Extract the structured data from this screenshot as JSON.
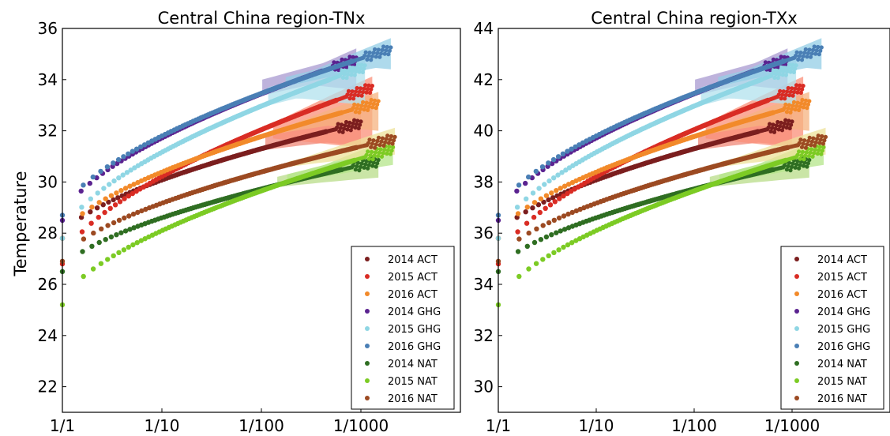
{
  "chart_data": [
    {
      "type": "scatter",
      "title": "Central China region-TNx",
      "xlabel": "",
      "ylabel": "Temperature",
      "xscale": "log",
      "xticks": [
        "1/1",
        "1/10",
        "1/100",
        "1/1000"
      ],
      "xlim_return_period": [
        1,
        10000
      ],
      "yticks": [
        "22",
        "24",
        "26",
        "28",
        "30",
        "32",
        "34",
        "36"
      ],
      "ylim": [
        21,
        36
      ],
      "legend_position": "lower-right",
      "series": [
        {
          "name": "2014 ACT",
          "color": "#7b1e1e",
          "y0": 27.8,
          "y1": 32.3,
          "rp_max": 1000,
          "band": {
            "color": "#f08878",
            "lo": 31.4,
            "hi": 32.8
          }
        },
        {
          "name": "2015 ACT",
          "color": "#d92c24",
          "y0": 26.8,
          "y1": 33.7,
          "rp_max": 1300,
          "band": {
            "color": "#fb8f78",
            "lo": 31.3,
            "hi": 33.2
          }
        },
        {
          "name": "2016 ACT",
          "color": "#f28a2a",
          "y0": 27.8,
          "y1": 33.1,
          "rp_max": 1500,
          "band": {
            "color": "#f6b380",
            "lo": 32.0,
            "hi": 32.6
          }
        },
        {
          "name": "2014 GHG",
          "color": "#5b2390",
          "y0": 28.5,
          "y1": 34.8,
          "rp_max": 900,
          "band": {
            "color": "#a89ad0",
            "lo": 33.6,
            "hi": 35.0
          }
        },
        {
          "name": "2015 GHG",
          "color": "#8fd6e4",
          "y0": 27.8,
          "y1": 34.5,
          "rp_max": 1100,
          "band": {
            "color": "#b2e2ee",
            "lo": 33.0,
            "hi": 34.7
          }
        },
        {
          "name": "2016 GHG",
          "color": "#4a7fb5",
          "y0": 28.7,
          "y1": 35.2,
          "rp_max": 2000,
          "band": {
            "color": "#93cde6",
            "lo": 34.4,
            "hi": 35.1
          }
        },
        {
          "name": "2014 NAT",
          "color": "#2f6e22",
          "y0": 26.5,
          "y1": 30.8,
          "rp_max": 1500,
          "band": {
            "color": "#b8dc88",
            "lo": 30.6,
            "hi": 31.2
          }
        },
        {
          "name": "2015 NAT",
          "color": "#7ccb24",
          "y0": 25.2,
          "y1": 31.3,
          "rp_max": 2100,
          "band": {
            "color": "#b4e58a",
            "lo": 30.7,
            "hi": 31.3
          }
        },
        {
          "name": "2016 NAT",
          "color": "#9c4a22",
          "y0": 26.9,
          "y1": 31.7,
          "rp_max": 2200,
          "band": {
            "color": "#ede29a",
            "lo": 31.3,
            "hi": 31.8
          }
        }
      ]
    },
    {
      "type": "scatter",
      "title": "Central China region-TXx",
      "xlabel": "",
      "ylabel": "",
      "xscale": "log",
      "xticks": [
        "1/1",
        "1/10",
        "1/100",
        "1/1000"
      ],
      "xlim_return_period": [
        1,
        10000
      ],
      "yticks": [
        "30",
        "32",
        "34",
        "36",
        "38",
        "40",
        "42",
        "44"
      ],
      "ylim": [
        29,
        44
      ],
      "legend_position": "lower-right",
      "series": [
        {
          "name": "2014 ACT",
          "color": "#7b1e1e",
          "y0": 35.8,
          "y1": 40.3,
          "rp_max": 1000,
          "band": {
            "color": "#f08878",
            "lo": 39.4,
            "hi": 40.8
          }
        },
        {
          "name": "2015 ACT",
          "color": "#d92c24",
          "y0": 34.8,
          "y1": 41.7,
          "rp_max": 1300,
          "band": {
            "color": "#fb8f78",
            "lo": 39.3,
            "hi": 41.2
          }
        },
        {
          "name": "2016 ACT",
          "color": "#f28a2a",
          "y0": 35.8,
          "y1": 41.1,
          "rp_max": 1500,
          "band": {
            "color": "#f6b380",
            "lo": 40.0,
            "hi": 40.6
          }
        },
        {
          "name": "2014 GHG",
          "color": "#5b2390",
          "y0": 36.5,
          "y1": 42.8,
          "rp_max": 900,
          "band": {
            "color": "#a89ad0",
            "lo": 41.6,
            "hi": 43.0
          }
        },
        {
          "name": "2015 GHG",
          "color": "#8fd6e4",
          "y0": 35.8,
          "y1": 42.5,
          "rp_max": 1100,
          "band": {
            "color": "#b2e2ee",
            "lo": 41.0,
            "hi": 42.7
          }
        },
        {
          "name": "2016 GHG",
          "color": "#4a7fb5",
          "y0": 36.7,
          "y1": 43.2,
          "rp_max": 2000,
          "band": {
            "color": "#93cde6",
            "lo": 42.4,
            "hi": 43.1
          }
        },
        {
          "name": "2014 NAT",
          "color": "#2f6e22",
          "y0": 34.5,
          "y1": 38.8,
          "rp_max": 1500,
          "band": {
            "color": "#b8dc88",
            "lo": 38.6,
            "hi": 39.2
          }
        },
        {
          "name": "2015 NAT",
          "color": "#7ccb24",
          "y0": 33.2,
          "y1": 39.3,
          "rp_max": 2100,
          "band": {
            "color": "#b4e58a",
            "lo": 38.7,
            "hi": 39.3
          }
        },
        {
          "name": "2016 NAT",
          "color": "#9c4a22",
          "y0": 34.9,
          "y1": 39.7,
          "rp_max": 2200,
          "band": {
            "color": "#ede29a",
            "lo": 39.3,
            "hi": 39.8
          }
        }
      ]
    }
  ]
}
